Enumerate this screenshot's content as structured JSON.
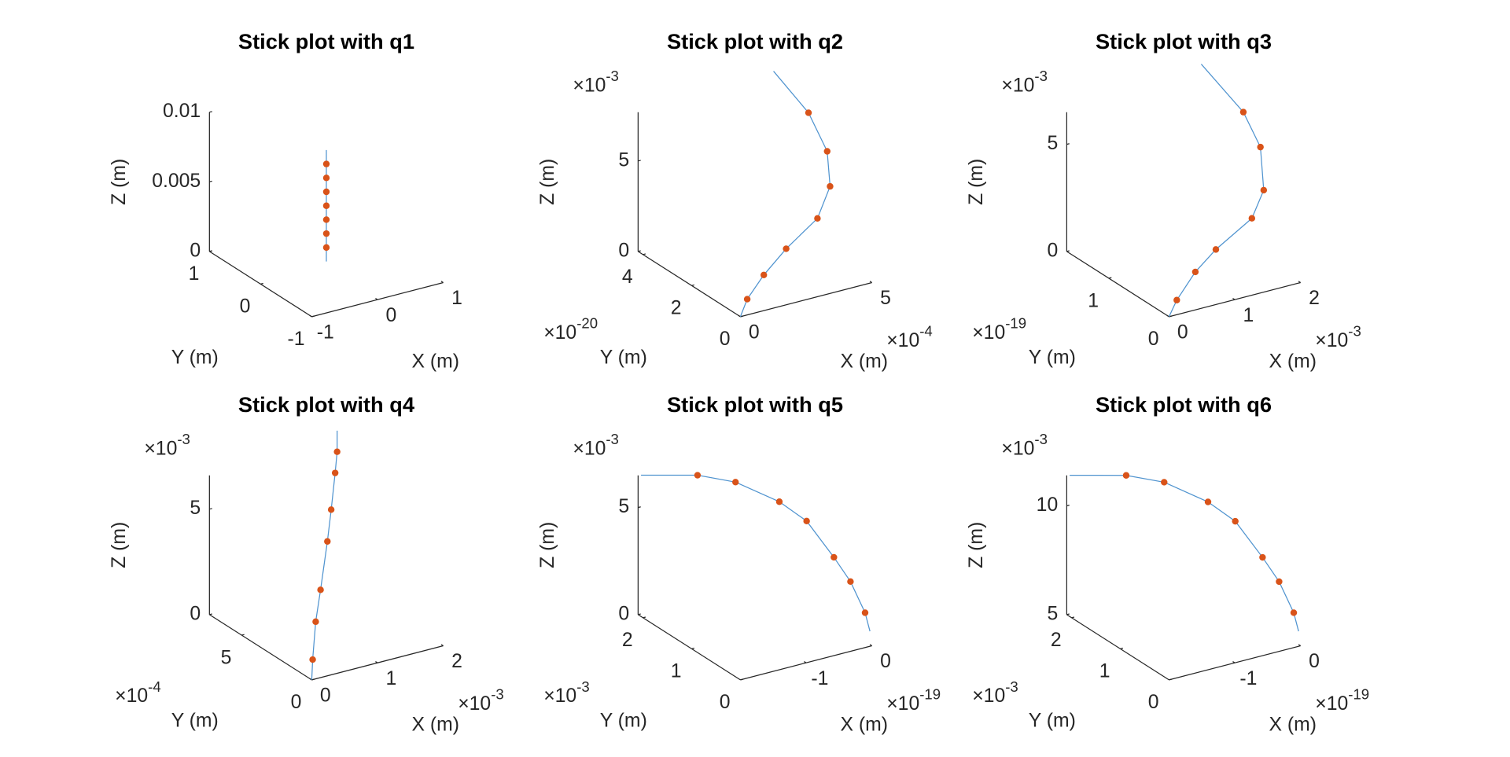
{
  "chart_data": [
    {
      "type": "line3d",
      "title": "Stick plot with q1",
      "xlabel": "X (m)",
      "ylabel": "Y (m)",
      "zlabel": "Z (m)",
      "color": "#4f93cf",
      "marker_color": "#d95319",
      "x": [
        0,
        0,
        0,
        0,
        0,
        0,
        0,
        0,
        0
      ],
      "y": [
        0,
        0,
        0,
        0,
        0,
        0,
        0,
        0,
        0
      ],
      "z": [
        0.0004,
        0.0014,
        0.0024,
        0.0034,
        0.0044,
        0.0054,
        0.0064,
        0.0074,
        0.0084
      ],
      "xlim": [
        -1,
        1
      ],
      "ylim": [
        -1,
        1
      ],
      "zlim": [
        0,
        0.01
      ],
      "xticks": [
        -1,
        0,
        1
      ],
      "yticks": [
        -1,
        0,
        1
      ],
      "zticks": [
        0,
        0.005,
        0.01
      ]
    },
    {
      "type": "line3d",
      "title": "Stick plot with q2",
      "xlabel": "X (m)",
      "ylabel": "Y (m)",
      "zlabel": "Z (m)",
      "color": "#4f93cf",
      "marker_color": "#d95319",
      "x": [
        0,
        2.6e-05,
        8.9e-05,
        0.000174,
        0.000293,
        0.000341,
        0.00033,
        0.000259,
        0.000126
      ],
      "y": [
        0,
        0,
        0,
        0,
        0,
        0,
        0,
        0,
        0
      ],
      "z": [
        0,
        0.00087,
        0.00197,
        0.0031,
        0.00433,
        0.00592,
        0.0079,
        0.0103,
        0.0131
      ],
      "xlim": [
        0,
        0.0005
      ],
      "ylim": [
        0,
        4.2e-20
      ],
      "zlim": [
        0,
        0.0077
      ],
      "xticks": [
        0,
        {
          "value": 0.0005,
          "label": "5"
        }
      ],
      "yticks": [
        0,
        {
          "value": 2e-20,
          "label": "2"
        },
        {
          "value": 4e-20,
          "label": "4"
        }
      ],
      "zticks": [
        0,
        {
          "value": 0.005,
          "label": "5"
        }
      ],
      "x_factor": {
        "base": "×10",
        "power": "-4"
      },
      "y_factor": {
        "base": "×10",
        "power": "-20"
      },
      "z_factor": {
        "base": "×10",
        "power": "-3"
      }
    },
    {
      "type": "line3d",
      "title": "Stick plot with q3",
      "xlabel": "X (m)",
      "ylabel": "Y (m)",
      "zlabel": "Z (m)",
      "color": "#4f93cf",
      "marker_color": "#d95319",
      "x": [
        0,
        0.000118,
        0.0004,
        0.000712,
        0.00126,
        0.00144,
        0.00139,
        0.00113,
        0.00049
      ],
      "y": [
        0,
        0,
        0,
        0,
        0,
        0,
        0,
        0,
        0
      ],
      "z": [
        0,
        0.00068,
        0.00177,
        0.00257,
        0.00359,
        0.00476,
        0.00681,
        0.00865,
        0.0114
      ],
      "xlim": [
        0,
        0.002
      ],
      "ylim": [
        0,
        1.7e-19
      ],
      "zlim": [
        0,
        0.0065
      ],
      "xticks": [
        0,
        {
          "value": 0.001,
          "label": "1"
        },
        {
          "value": 0.002,
          "label": "2"
        }
      ],
      "yticks": [
        0,
        {
          "value": 1e-19,
          "label": "1"
        }
      ],
      "zticks": [
        0,
        {
          "value": 0.005,
          "label": "5"
        }
      ],
      "x_factor": {
        "base": "×10",
        "power": "-3"
      },
      "y_factor": {
        "base": "×10",
        "power": "-19"
      },
      "z_factor": {
        "base": "×10",
        "power": "-3"
      }
    },
    {
      "type": "line3d",
      "title": "Stick plot with q4",
      "xlabel": "X (m)",
      "ylabel": "Y (m)",
      "zlabel": "Z (m)",
      "color": "#4f93cf",
      "marker_color": "#d95319",
      "x": [
        0,
        1.4e-05,
        6e-05,
        0.000134,
        0.000238,
        0.000296,
        0.000356,
        0.000386,
        0.000386
      ],
      "y": [
        0,
        0,
        0,
        0,
        0,
        0,
        0,
        0,
        0
      ],
      "z": [
        0,
        0.00095,
        0.00271,
        0.00416,
        0.00637,
        0.00783,
        0.00952,
        0.0105,
        0.0115
      ],
      "xlim": [
        0,
        0.002
      ],
      "ylim": [
        0,
        0.00073
      ],
      "zlim": [
        0,
        0.0066
      ],
      "xticks": [
        0,
        {
          "value": 0.001,
          "label": "1"
        },
        {
          "value": 0.002,
          "label": "2"
        }
      ],
      "yticks": [
        0,
        {
          "value": 0.0005,
          "label": "5"
        }
      ],
      "zticks": [
        0,
        {
          "value": 0.005,
          "label": "5"
        }
      ],
      "x_factor": {
        "base": "×10",
        "power": "-3"
      },
      "y_factor": {
        "base": "×10",
        "power": "-4"
      },
      "z_factor": {
        "base": "×10",
        "power": "-3"
      }
    },
    {
      "type": "line3d",
      "title": "Stick plot with q5",
      "xlabel": "X (m)",
      "ylabel": "Y (m)",
      "zlabel": "Z (m)",
      "color": "#4f93cf",
      "marker_color": "#d95319",
      "x": [
        0,
        0,
        0,
        0,
        0,
        0,
        0,
        0,
        0
      ],
      "y": [
        4e-05,
        0.00014,
        0.00044,
        0.00078,
        0.00134,
        0.0019,
        0.0028,
        0.00358,
        0.00474
      ],
      "z": [
        0.00062,
        0.00134,
        0.00236,
        0.003,
        0.00388,
        0.00397,
        0.00358,
        0.00277,
        0.00109
      ],
      "xlim": [
        -2e-19,
        0
      ],
      "ylim": [
        0,
        0.0021
      ],
      "zlim": [
        0,
        0.0065
      ],
      "xticks": [
        {
          "value": -1e-19,
          "label": "-1"
        },
        0
      ],
      "yticks": [
        0,
        {
          "value": 0.001,
          "label": "1"
        },
        {
          "value": 0.002,
          "label": "2"
        }
      ],
      "zticks": [
        0,
        {
          "value": 0.005,
          "label": "5"
        }
      ],
      "x_factor": {
        "base": "×10",
        "power": "-19"
      },
      "y_factor": {
        "base": "×10",
        "power": "-3"
      },
      "z_factor": {
        "base": "×10",
        "power": "-3"
      }
    },
    {
      "type": "line3d",
      "title": "Stick plot with q6",
      "xlabel": "X (m)",
      "ylabel": "Y (m)",
      "zlabel": "Z (m)",
      "color": "#4f93cf",
      "marker_color": "#d95319",
      "x": [
        0,
        0,
        0,
        0,
        0,
        0,
        0,
        0,
        0
      ],
      "y": [
        4e-05,
        0.00014,
        0.00044,
        0.00078,
        0.00134,
        0.0019,
        0.0028,
        0.00358,
        0.00474
      ],
      "z": [
        0.00561,
        0.00632,
        0.00732,
        0.00795,
        0.00881,
        0.0089,
        0.00852,
        0.00772,
        0.00607
      ],
      "xlim": [
        -2e-19,
        0
      ],
      "ylim": [
        0,
        0.0021
      ],
      "zlim": [
        0.005,
        0.0114
      ],
      "xticks": [
        {
          "value": -1e-19,
          "label": "-1"
        },
        0
      ],
      "yticks": [
        0,
        {
          "value": 0.001,
          "label": "1"
        },
        {
          "value": 0.002,
          "label": "2"
        }
      ],
      "zticks": [
        {
          "value": 0.005,
          "label": "5"
        },
        {
          "value": 0.01,
          "label": "10"
        }
      ],
      "x_factor": {
        "base": "×10",
        "power": "-19"
      },
      "y_factor": {
        "base": "×10",
        "power": "-3"
      },
      "z_factor": {
        "base": "×10",
        "power": "-3"
      }
    }
  ]
}
